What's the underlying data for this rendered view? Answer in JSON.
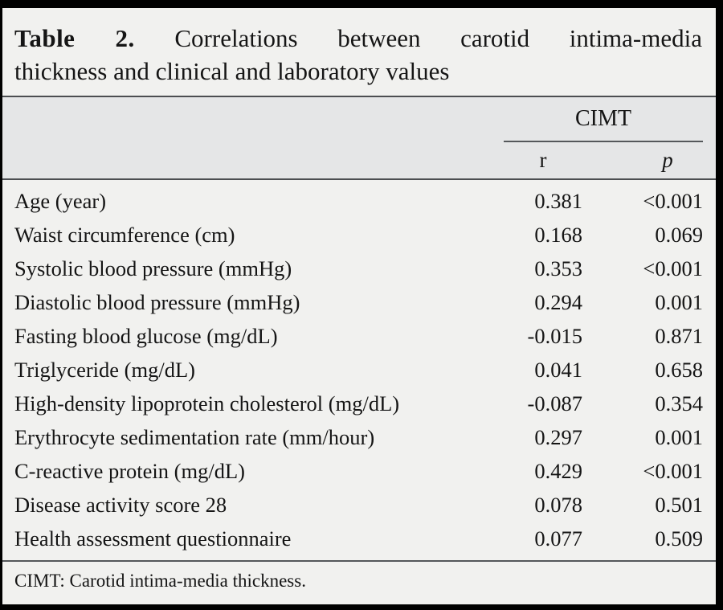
{
  "page": {
    "background": "#f1f1ef",
    "header_band_background": "#e5e6e7",
    "frame_color": "#000000",
    "rule_color": "#4c4e51",
    "text_color": "#151515"
  },
  "title": {
    "label": "Table 2.",
    "line1_rest": "Correlations between carotid intima-media",
    "line2": "thickness and clinical and laboratory values"
  },
  "table": {
    "group_header": "CIMT",
    "columns": [
      {
        "key": "r",
        "label": "r"
      },
      {
        "key": "p",
        "label": "p"
      }
    ],
    "rows": [
      {
        "label": "Age (year)",
        "r": "0.381",
        "p": "<0.001"
      },
      {
        "label": "Waist circumference (cm)",
        "r": "0.168",
        "p": "0.069"
      },
      {
        "label": "Systolic blood pressure (mmHg)",
        "r": "0.353",
        "p": "<0.001"
      },
      {
        "label": "Diastolic blood pressure (mmHg)",
        "r": "0.294",
        "p": "0.001"
      },
      {
        "label": "Fasting blood glucose (mg/dL)",
        "r": "-0.015",
        "p": "0.871"
      },
      {
        "label": "Triglyceride (mg/dL)",
        "r": "0.041",
        "p": "0.658"
      },
      {
        "label": "High-density lipoprotein cholesterol (mg/dL)",
        "r": "-0.087",
        "p": "0.354"
      },
      {
        "label": "Erythrocyte sedimentation rate (mm/hour)",
        "r": "0.297",
        "p": "0.001"
      },
      {
        "label": "C-reactive protein (mg/dL)",
        "r": "0.429",
        "p": "<0.001"
      },
      {
        "label": "Disease activity score 28",
        "r": "0.078",
        "p": "0.501"
      },
      {
        "label": "Health assessment questionnaire",
        "r": "0.077",
        "p": "0.509"
      }
    ]
  },
  "footnote": "CIMT: Carotid intima-media thickness."
}
